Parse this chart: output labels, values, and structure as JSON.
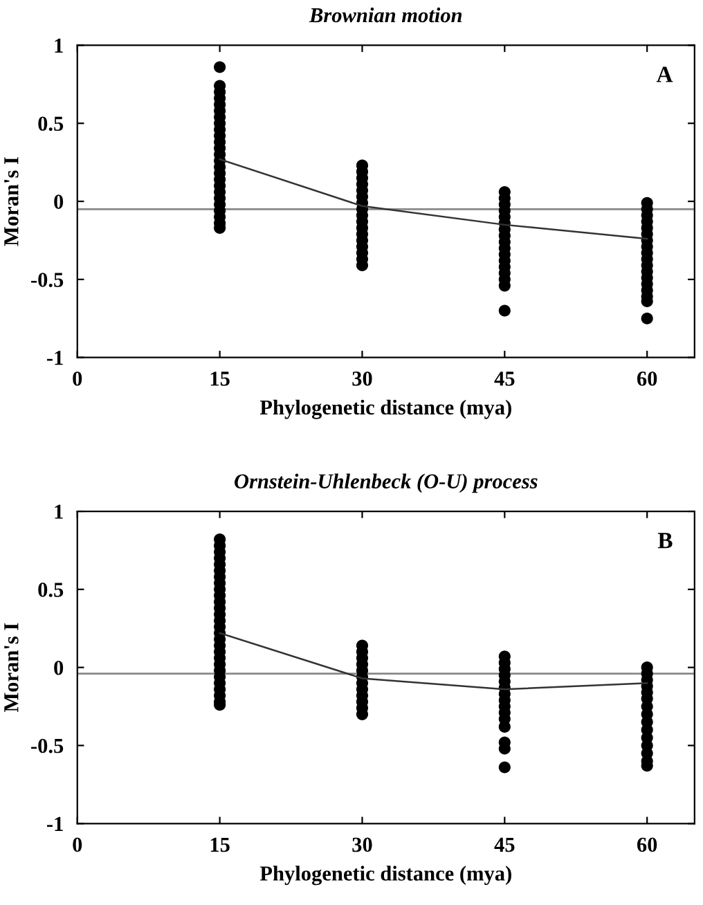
{
  "chart_data": [
    {
      "type": "scatter",
      "title": "Brownian motion",
      "xlabel": "Phylogenetic distance (mya)",
      "ylabel": "Moran's I",
      "annotations": [
        "A"
      ],
      "xlim": [
        0,
        65
      ],
      "ylim": [
        -1,
        1
      ],
      "xticks": [
        0,
        15,
        30,
        45,
        60
      ],
      "yticks": [
        -1,
        -0.5,
        0,
        0.5,
        1
      ],
      "grid": false,
      "legend": false,
      "marker": "circle",
      "series": [
        {
          "color": "#000000",
          "x": [
            15,
            15,
            15,
            15,
            15,
            15,
            15,
            15,
            15,
            15,
            15,
            15,
            15,
            15,
            15,
            15,
            15,
            15,
            15,
            15,
            15,
            15,
            15,
            15,
            15,
            30,
            30,
            30,
            30,
            30,
            30,
            30,
            30,
            30,
            30,
            30,
            30,
            30,
            30,
            30,
            30,
            30,
            45,
            45,
            45,
            45,
            45,
            45,
            45,
            45,
            45,
            45,
            45,
            45,
            45,
            45,
            45,
            45,
            45,
            60,
            60,
            60,
            60,
            60,
            60,
            60,
            60,
            60,
            60,
            60,
            60,
            60,
            60,
            60,
            60,
            60,
            60
          ],
          "values": [
            0.86,
            0.74,
            0.7,
            0.66,
            0.62,
            0.58,
            0.54,
            0.5,
            0.46,
            0.42,
            0.38,
            0.34,
            0.3,
            0.26,
            0.22,
            0.18,
            0.14,
            0.1,
            0.06,
            0.02,
            -0.02,
            -0.06,
            -0.1,
            -0.14,
            -0.17,
            0.23,
            0.19,
            0.15,
            0.11,
            0.07,
            0.03,
            -0.01,
            -0.05,
            -0.09,
            -0.13,
            -0.17,
            -0.21,
            -0.25,
            -0.29,
            -0.33,
            -0.37,
            -0.41,
            0.06,
            0.02,
            -0.02,
            -0.06,
            -0.1,
            -0.14,
            -0.18,
            -0.22,
            -0.26,
            -0.3,
            -0.34,
            -0.38,
            -0.42,
            -0.46,
            -0.5,
            -0.54,
            -0.7,
            -0.01,
            -0.05,
            -0.09,
            -0.13,
            -0.17,
            -0.21,
            -0.25,
            -0.29,
            -0.33,
            -0.37,
            -0.41,
            -0.45,
            -0.49,
            -0.53,
            -0.57,
            -0.61,
            -0.64,
            -0.75
          ]
        },
        {
          "type": "line",
          "color": "#333333",
          "marker": "none",
          "x": [
            15,
            30,
            45,
            60
          ],
          "values": [
            0.27,
            -0.03,
            -0.15,
            -0.24
          ]
        }
      ],
      "ref_lines": [
        {
          "axis": "y",
          "value": -0.05,
          "color": "#888888"
        }
      ]
    },
    {
      "type": "scatter",
      "title": "Ornstein-Uhlenbeck (O-U) process",
      "xlabel": "Phylogenetic distance (mya)",
      "ylabel": "Moran's I",
      "annotations": [
        "B"
      ],
      "xlim": [
        0,
        65
      ],
      "ylim": [
        -1,
        1
      ],
      "xticks": [
        0,
        15,
        30,
        45,
        60
      ],
      "yticks": [
        -1,
        -0.5,
        0,
        0.5,
        1
      ],
      "grid": false,
      "legend": false,
      "marker": "circle",
      "series": [
        {
          "color": "#000000",
          "x": [
            15,
            15,
            15,
            15,
            15,
            15,
            15,
            15,
            15,
            15,
            15,
            15,
            15,
            15,
            15,
            15,
            15,
            15,
            15,
            15,
            15,
            15,
            15,
            15,
            15,
            15,
            15,
            15,
            30,
            30,
            30,
            30,
            30,
            30,
            30,
            30,
            30,
            30,
            30,
            30,
            45,
            45,
            45,
            45,
            45,
            45,
            45,
            45,
            45,
            45,
            45,
            45,
            45,
            45,
            45,
            60,
            60,
            60,
            60,
            60,
            60,
            60,
            60,
            60,
            60,
            60,
            60,
            60,
            60,
            60
          ],
          "values": [
            0.82,
            0.78,
            0.74,
            0.7,
            0.66,
            0.62,
            0.58,
            0.54,
            0.5,
            0.46,
            0.42,
            0.38,
            0.34,
            0.3,
            0.26,
            0.22,
            0.18,
            0.14,
            0.1,
            0.06,
            0.02,
            -0.02,
            -0.06,
            -0.1,
            -0.14,
            -0.18,
            -0.22,
            -0.24,
            0.14,
            0.1,
            0.06,
            0.02,
            -0.02,
            -0.06,
            -0.1,
            -0.14,
            -0.18,
            -0.22,
            -0.26,
            -0.3,
            0.07,
            0.03,
            -0.01,
            -0.05,
            -0.09,
            -0.13,
            -0.17,
            -0.21,
            -0.25,
            -0.29,
            -0.33,
            -0.38,
            -0.48,
            -0.52,
            -0.64,
            0.0,
            -0.04,
            -0.08,
            -0.12,
            -0.16,
            -0.2,
            -0.25,
            -0.3,
            -0.35,
            -0.4,
            -0.45,
            -0.5,
            -0.55,
            -0.6,
            -0.63
          ]
        },
        {
          "type": "line",
          "color": "#333333",
          "marker": "none",
          "x": [
            15,
            30,
            45,
            60
          ],
          "values": [
            0.22,
            -0.07,
            -0.14,
            -0.1
          ]
        }
      ],
      "ref_lines": [
        {
          "axis": "y",
          "value": -0.04,
          "color": "#888888"
        }
      ]
    }
  ]
}
